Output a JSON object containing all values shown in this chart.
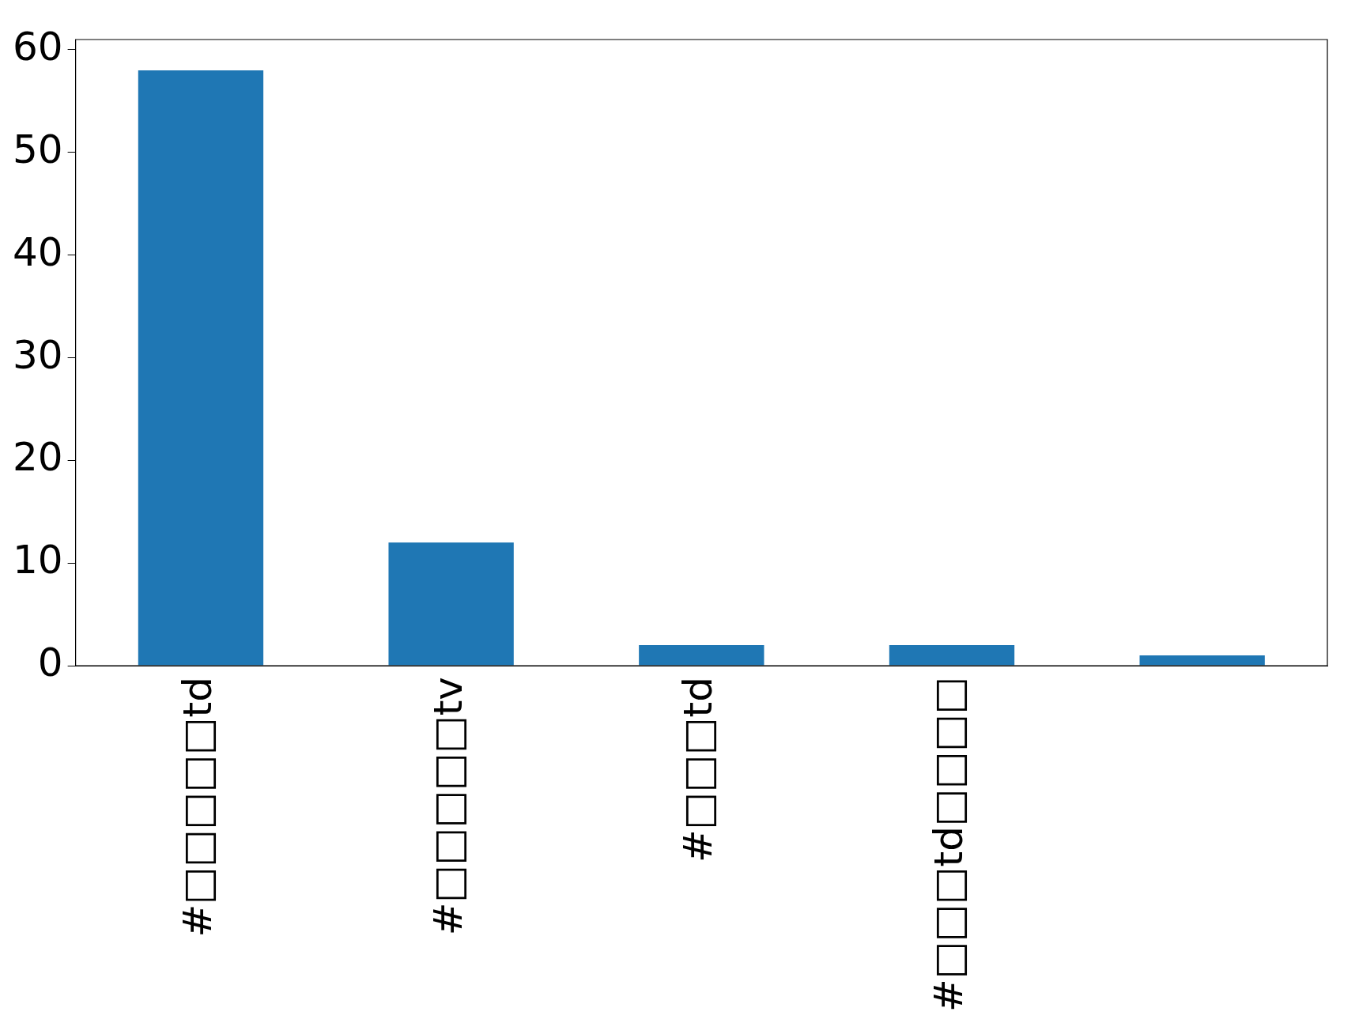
{
  "chart_data": {
    "type": "bar",
    "categories": [
      "#□□□□□td",
      "#□□□□□tv",
      "#□□□td",
      "#□□□td□□□□",
      null
    ],
    "values": [
      58,
      12,
      2,
      2,
      1
    ],
    "color": "#1f77b4",
    "ylim": [
      0,
      61
    ],
    "yticks": [
      0,
      10,
      20,
      30,
      40,
      50,
      60
    ],
    "grid": false,
    "legend": false
  }
}
